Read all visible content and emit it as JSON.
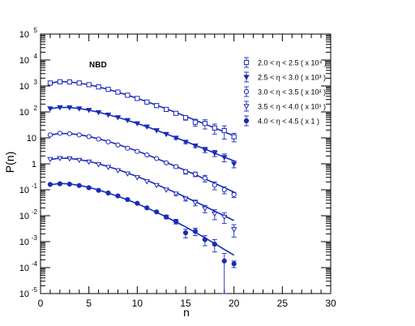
{
  "chart_data": {
    "type": "scatter",
    "annotation": "NBD",
    "xlabel": "n",
    "ylabel": "P(n)",
    "xlim": [
      0,
      30
    ],
    "ylim": [
      1e-05,
      100000
    ],
    "yscale": "log",
    "grid": false,
    "legend_position": "top-right",
    "x_ticks": [
      0,
      5,
      10,
      15,
      20,
      25,
      30
    ],
    "y_ticks": [
      {
        "base": "10",
        "exp": "-5",
        "value": 1e-05
      },
      {
        "base": "10",
        "exp": "-4",
        "value": 0.0001
      },
      {
        "base": "10",
        "exp": "-3",
        "value": 0.001
      },
      {
        "base": "10",
        "exp": "-2",
        "value": 0.01
      },
      {
        "base": "10",
        "exp": "-1",
        "value": 0.1
      },
      {
        "base": "1",
        "exp": "",
        "value": 1
      },
      {
        "base": "10",
        "exp": "",
        "value": 10
      },
      {
        "base": "10",
        "exp": "2",
        "value": 100
      },
      {
        "base": "10",
        "exp": "3",
        "value": 1000
      },
      {
        "base": "10",
        "exp": "4",
        "value": 10000
      },
      {
        "base": "10",
        "exp": "5",
        "value": 100000
      }
    ],
    "color": "#1a2bb8",
    "series": [
      {
        "name": "2.0 < η < 2.5 ( x 10⁴ )",
        "marker": "open-square",
        "x": [
          1,
          2,
          3,
          4,
          5,
          6,
          7,
          8,
          9,
          10,
          11,
          12,
          13,
          14,
          15,
          16,
          17,
          18,
          19,
          20
        ],
        "y": [
          1300,
          1450,
          1420,
          1300,
          1120,
          920,
          740,
          580,
          440,
          330,
          240,
          175,
          125,
          88,
          60,
          40,
          36,
          24,
          19,
          11
        ],
        "yerr_lo": [
          0,
          0,
          0,
          0,
          0,
          0,
          0,
          0,
          0,
          0,
          0,
          0,
          10,
          10,
          12,
          12,
          14,
          10,
          10,
          4
        ],
        "yerr_hi": [
          0,
          0,
          0,
          0,
          0,
          0,
          0,
          0,
          0,
          0,
          0,
          0,
          10,
          10,
          12,
          12,
          14,
          10,
          10,
          4
        ],
        "fit_y": [
          1300,
          1480,
          1430,
          1290,
          1110,
          920,
          740,
          580,
          445,
          335,
          248,
          182,
          132,
          95,
          68,
          48,
          34,
          24,
          17,
          12
        ]
      },
      {
        "name": "2.5 < η < 3.0 ( x 10³ )",
        "marker": "filled-triangle-down",
        "x": [
          1,
          2,
          3,
          4,
          5,
          6,
          7,
          8,
          9,
          10,
          11,
          12,
          13,
          14,
          15,
          16,
          17,
          18,
          19,
          20
        ],
        "y": [
          135,
          150,
          148,
          135,
          118,
          97,
          78,
          62,
          48,
          36,
          27,
          19.5,
          14,
          10,
          7,
          5,
          3.5,
          2.6,
          1.8,
          1.0
        ],
        "yerr_lo": [
          0,
          0,
          0,
          0,
          0,
          0,
          0,
          0,
          0,
          0,
          0,
          0,
          0,
          1.2,
          1,
          0.8,
          0.8,
          0.7,
          0.6,
          0.3
        ],
        "yerr_hi": [
          0,
          0,
          0,
          0,
          0,
          0,
          0,
          0,
          0,
          0,
          0,
          0,
          0,
          1.2,
          1,
          0.8,
          0.8,
          0.7,
          0.6,
          0.3
        ],
        "fit_y": [
          132,
          150,
          147,
          135,
          117,
          97,
          78,
          62,
          47,
          36,
          27,
          19.5,
          14.2,
          10.2,
          7.3,
          5.2,
          3.7,
          2.6,
          1.8,
          1.3
        ]
      },
      {
        "name": "3.0 < η < 3.5 ( x 10² )",
        "marker": "open-circle",
        "x": [
          1,
          2,
          3,
          4,
          5,
          6,
          7,
          8,
          9,
          10,
          11,
          12,
          13,
          14,
          15,
          16,
          17,
          18,
          19,
          20
        ],
        "y": [
          13,
          15,
          14.5,
          13,
          11.2,
          9,
          7,
          5.3,
          4,
          3,
          2.2,
          1.6,
          1.1,
          0.78,
          0.5,
          0.4,
          0.28,
          0.15,
          0.1,
          0.065
        ],
        "yerr_lo": [
          0,
          0,
          0,
          0,
          0,
          0,
          0,
          0,
          0,
          0,
          0,
          0,
          0,
          0.1,
          0.1,
          0.08,
          0.08,
          0.05,
          0.03,
          0.015
        ],
        "yerr_hi": [
          0,
          0,
          0,
          0,
          0,
          0,
          0,
          0,
          0,
          0,
          0,
          0,
          0,
          0.1,
          0.1,
          0.08,
          0.08,
          0.05,
          0.03,
          0.015
        ],
        "fit_y": [
          13,
          14.8,
          14.5,
          13.2,
          11.3,
          9.2,
          7.3,
          5.6,
          4.2,
          3.1,
          2.25,
          1.6,
          1.13,
          0.79,
          0.55,
          0.38,
          0.26,
          0.18,
          0.12,
          0.082
        ]
      },
      {
        "name": "3.5 < η < 4.0 ( x 10¹ )",
        "marker": "open-triangle-down",
        "x": [
          1,
          2,
          3,
          4,
          5,
          6,
          7,
          8,
          9,
          10,
          11,
          12,
          13,
          14,
          15,
          16,
          17,
          18,
          19,
          20
        ],
        "y": [
          1.5,
          1.65,
          1.6,
          1.4,
          1.2,
          0.95,
          0.75,
          0.56,
          0.42,
          0.3,
          0.21,
          0.15,
          0.1,
          0.07,
          0.045,
          0.032,
          0.019,
          0.012,
          0.009,
          0.003
        ],
        "yerr_lo": [
          0,
          0,
          0,
          0,
          0,
          0,
          0,
          0,
          0,
          0,
          0,
          0,
          0,
          0.01,
          0.008,
          0.008,
          0.006,
          0.005,
          0.004,
          0.0015
        ],
        "yerr_hi": [
          0,
          0,
          0,
          0,
          0,
          0,
          0,
          0,
          0,
          0,
          0,
          0,
          0,
          0.01,
          0.008,
          0.008,
          0.006,
          0.005,
          0.004,
          0.0015
        ],
        "fit_y": [
          1.45,
          1.65,
          1.62,
          1.45,
          1.24,
          1.0,
          0.78,
          0.6,
          0.44,
          0.32,
          0.23,
          0.16,
          0.11,
          0.077,
          0.052,
          0.035,
          0.023,
          0.015,
          0.01,
          0.0065
        ]
      },
      {
        "name": "4.0 < η < 4.5 ( x 1 )",
        "marker": "filled-circle",
        "x": [
          1,
          2,
          3,
          4,
          5,
          6,
          7,
          8,
          9,
          10,
          11,
          12,
          13,
          14,
          15,
          16,
          17,
          18,
          19,
          20
        ],
        "y": [
          0.16,
          0.17,
          0.165,
          0.145,
          0.12,
          0.095,
          0.075,
          0.058,
          0.042,
          0.03,
          0.02,
          0.014,
          0.009,
          0.006,
          0.0022,
          0.0025,
          0.0012,
          0.0008,
          0.00018,
          0.00014
        ],
        "yerr_lo": [
          0,
          0,
          0,
          0,
          0,
          0,
          0,
          0,
          0,
          0,
          0,
          0,
          0.0015,
          0.0012,
          0.0008,
          0.0008,
          0.0005,
          0.0004,
          0.00017,
          4e-05
        ],
        "yerr_hi": [
          0,
          0,
          0,
          0,
          0,
          0,
          0,
          0,
          0,
          0,
          0,
          0,
          0.0015,
          0.0012,
          0.0008,
          0.0008,
          0.0005,
          0.0004,
          0.00017,
          4e-05
        ],
        "fit_y": [
          0.155,
          0.175,
          0.168,
          0.148,
          0.124,
          0.098,
          0.075,
          0.056,
          0.041,
          0.029,
          0.02,
          0.0135,
          0.009,
          0.0058,
          0.0037,
          0.0023,
          0.0014,
          0.00085,
          0.0005,
          0.0003
        ]
      }
    ]
  }
}
